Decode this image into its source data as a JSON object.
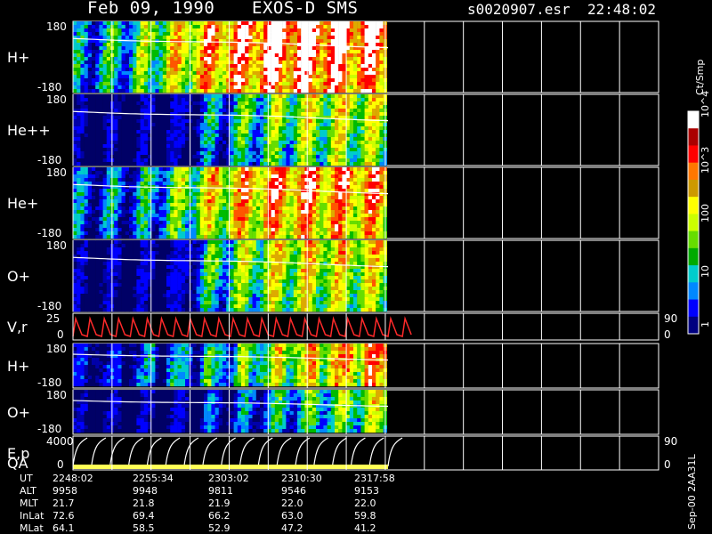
{
  "header": {
    "date": "Feb 09, 1990",
    "mission": "EXOS-D SMS",
    "file": "s0020907.esr",
    "time": "22:48:02"
  },
  "colors": {
    "background": "#000000",
    "frame": "#ffffff",
    "empty_panel": "#000000",
    "velocity_trace": "#ff2a2a",
    "energy_trace": "#ffffff",
    "qa_bar": "#ffff55"
  },
  "colorbar": {
    "title": "Ct/Smp",
    "ticks": [
      "10^4",
      "10^3",
      "100",
      "10",
      "1"
    ]
  },
  "footer": {
    "left_label": "UT",
    "side_label": "Sep-00 2AA31L",
    "row_labels": [
      "UT",
      "ALT",
      "MLT",
      "InLat",
      "MLat"
    ],
    "columns": [
      {
        "UT": "2248:02",
        "ALT": "9958",
        "MLT": "21.7",
        "InLat": "72.6",
        "MLat": "64.1"
      },
      {
        "UT": "2255:34",
        "ALT": "9948",
        "MLT": "21.8",
        "InLat": "69.4",
        "MLat": "58.5"
      },
      {
        "UT": "2303:02",
        "ALT": "9811",
        "MLT": "21.9",
        "InLat": "66.2",
        "MLat": "52.9"
      },
      {
        "UT": "2310:30",
        "ALT": "9546",
        "MLT": "22.0",
        "InLat": "63.0",
        "MLat": "47.2"
      },
      {
        "UT": "2317:58",
        "ALT": "9153",
        "MLT": "22.0",
        "InLat": "59.8",
        "MLat": "41.2"
      }
    ]
  },
  "chart_data": {
    "type": "heatmap",
    "title": "Feb 09, 1990 EXOS-D SMS",
    "xlabel": "UT",
    "ylabel": "",
    "grid": true,
    "legend": "right",
    "x": [
      "2248:02",
      "2255:34",
      "2303:02",
      "2310:30",
      "2317:58"
    ],
    "panels": [
      {
        "name": "H+",
        "label": "H+",
        "ylim": [
          -180,
          180
        ],
        "ticks": [
          "180",
          "-180"
        ],
        "style": "hplus",
        "intensity": [
          0.2,
          0.28,
          0.35,
          0.52,
          0.65,
          0.78,
          0.86,
          0.92,
          0.94,
          0.93,
          0.9,
          0.88
        ]
      },
      {
        "name": "He++",
        "label": "He++",
        "ylim": [
          -180,
          180
        ],
        "ticks": [
          "180",
          "-180"
        ],
        "style": "hepp",
        "intensity": [
          0.05,
          0.06,
          0.08,
          0.12,
          0.2,
          0.32,
          0.45,
          0.55,
          0.62,
          0.66,
          0.67,
          0.66
        ]
      },
      {
        "name": "He+",
        "label": "He+",
        "ylim": [
          -180,
          180
        ],
        "ticks": [
          "180",
          "-180"
        ],
        "style": "heplus",
        "intensity": [
          0.15,
          0.18,
          0.2,
          0.3,
          0.48,
          0.62,
          0.72,
          0.78,
          0.8,
          0.8,
          0.78,
          0.76
        ]
      },
      {
        "name": "O+",
        "label": "O+",
        "ylim": [
          -180,
          180
        ],
        "ticks": [
          "180",
          "-180"
        ],
        "style": "oplus",
        "intensity": [
          0.08,
          0.09,
          0.1,
          0.16,
          0.28,
          0.45,
          0.58,
          0.66,
          0.7,
          0.72,
          0.71,
          0.7
        ]
      },
      {
        "name": "V,r",
        "label": "V,r",
        "ylim": [
          0,
          25
        ],
        "ticks": [
          "25",
          "0"
        ],
        "right_ticks": [
          "90",
          "0"
        ],
        "style": "vr",
        "intensity": []
      },
      {
        "name": "H+",
        "label": "H+",
        "ylim": [
          -180,
          180
        ],
        "ticks": [
          "180",
          "-180"
        ],
        "style": "hplus2",
        "intensity": [
          0.08,
          0.1,
          0.12,
          0.15,
          0.2,
          0.28,
          0.38,
          0.48,
          0.58,
          0.66,
          0.72,
          0.76
        ]
      },
      {
        "name": "O+",
        "label": "O+",
        "ylim": [
          -180,
          180
        ],
        "ticks": [
          "180",
          "-180"
        ],
        "style": "oplus2",
        "intensity": [
          0.05,
          0.06,
          0.07,
          0.08,
          0.12,
          0.18,
          0.25,
          0.34,
          0.42,
          0.5,
          0.58,
          0.64
        ]
      },
      {
        "name": "E,p",
        "label": "E,p",
        "label2": "QA",
        "ylim": [
          0,
          4000
        ],
        "ticks": [
          "4000",
          "0"
        ],
        "right_ticks": [
          "90",
          "0"
        ],
        "style": "ep",
        "intensity": []
      }
    ]
  }
}
